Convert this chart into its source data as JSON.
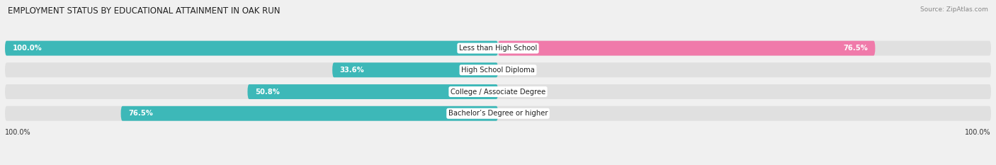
{
  "title": "EMPLOYMENT STATUS BY EDUCATIONAL ATTAINMENT IN OAK RUN",
  "source": "Source: ZipAtlas.com",
  "categories": [
    "Less than High School",
    "High School Diploma",
    "College / Associate Degree",
    "Bachelor’s Degree or higher"
  ],
  "labor_force": [
    100.0,
    33.6,
    50.8,
    76.5
  ],
  "unemployed": [
    76.5,
    0.0,
    0.0,
    0.0
  ],
  "color_labor": "#3db8b8",
  "color_unemployed": "#f07aaa",
  "color_labor_light": "#b8e8e8",
  "color_unemployed_light": "#f9c8db",
  "xlim_left": -100,
  "xlim_right": 100,
  "bar_height": 0.68,
  "background_color": "#f0f0f0",
  "bar_bg_color": "#e0e0e0",
  "title_fontsize": 8.5,
  "source_fontsize": 6.5,
  "label_fontsize": 7.2,
  "value_fontsize": 7.2,
  "tick_fontsize": 7,
  "legend_fontsize": 7.5,
  "figsize": [
    14.06,
    2.33
  ],
  "dpi": 100,
  "lf_label_white_threshold": 15,
  "un_label_white_threshold": 15
}
